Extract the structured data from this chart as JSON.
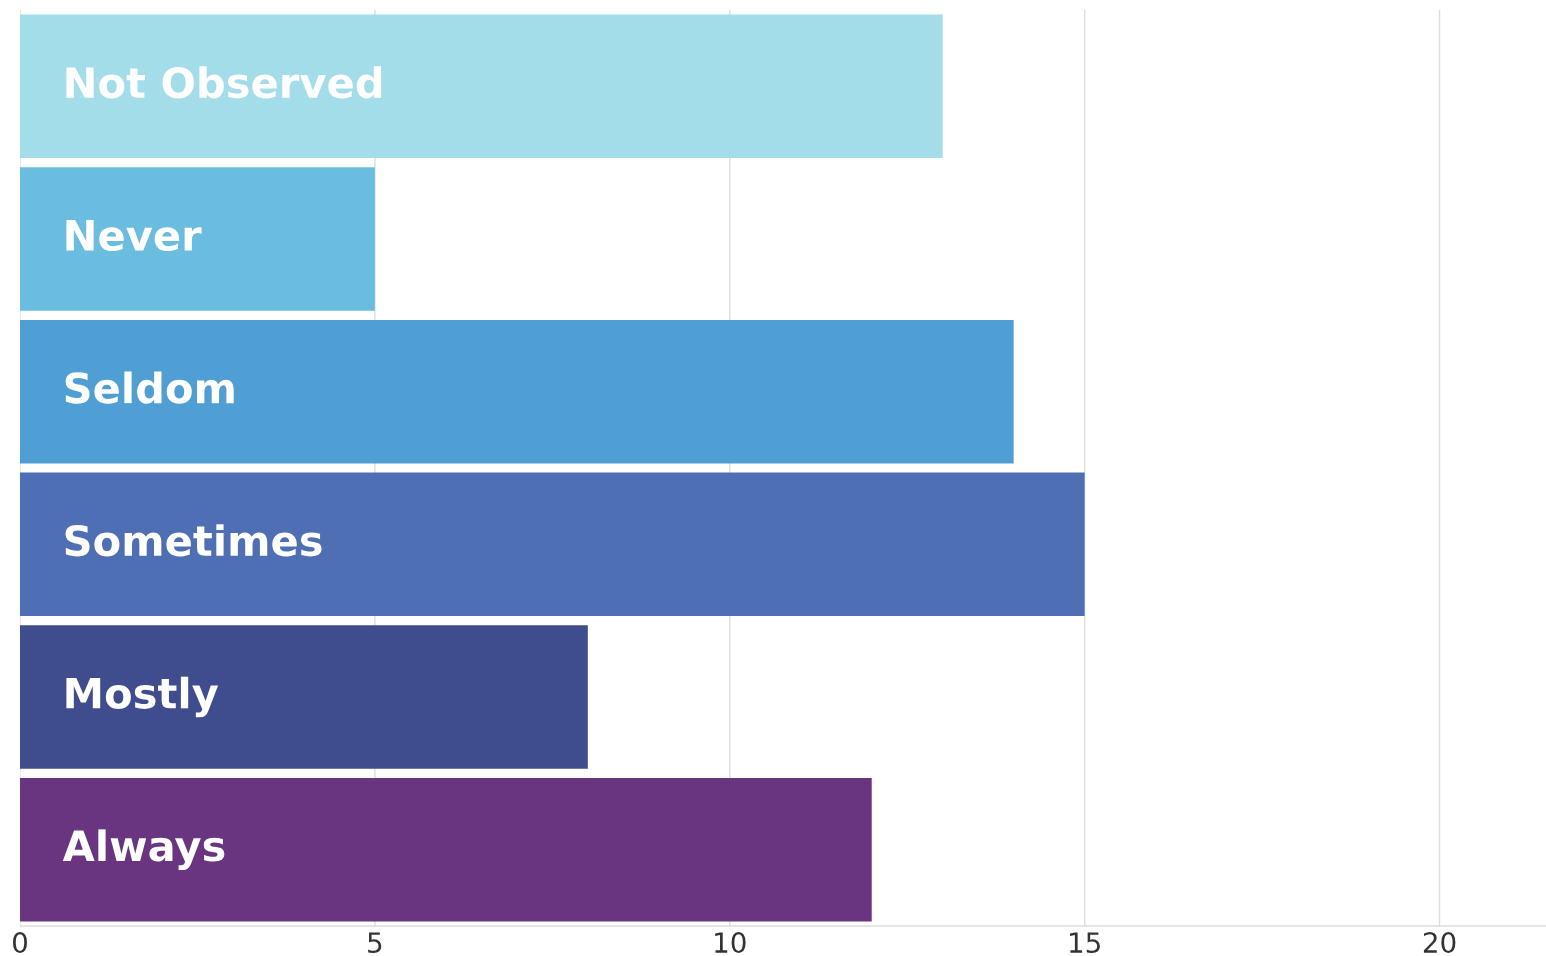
{
  "chart_data": {
    "type": "bar",
    "orientation": "horizontal",
    "categories": [
      "Not Observed",
      "Never",
      "Seldom",
      "Sometimes",
      "Mostly",
      "Always"
    ],
    "values": [
      13,
      5,
      14,
      15,
      8,
      12
    ],
    "colors": [
      "#a3dde9",
      "#6bbde0",
      "#4f9fd4",
      "#4f6fb4",
      "#3f4d8f",
      "#6a3580"
    ],
    "xlim": [
      0,
      21.5
    ],
    "xticks": [
      0,
      5,
      10,
      15,
      20
    ],
    "grid": "x"
  }
}
